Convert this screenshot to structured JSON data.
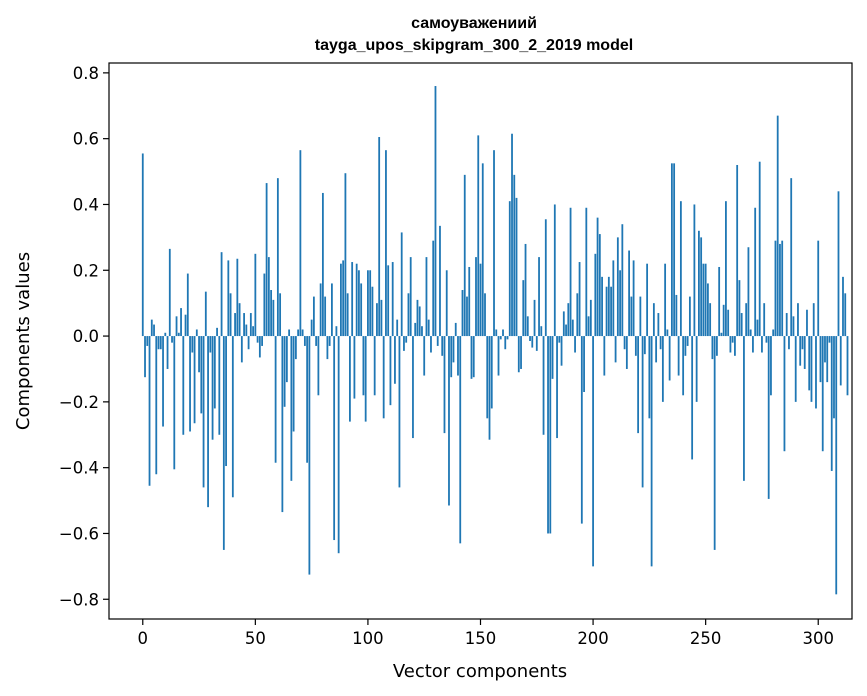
{
  "chart_data": {
    "type": "bar",
    "title_line1": "самоуважениий",
    "title_line2": "tayga_upos_skipgram_300_2_2019 model",
    "xlabel": "Vector components",
    "ylabel": "Components values",
    "xlim": [
      -15,
      315
    ],
    "ylim": [
      -0.86,
      0.83
    ],
    "xticks": [
      0,
      50,
      100,
      150,
      200,
      250,
      300
    ],
    "xtick_labels": [
      "0",
      "50",
      "100",
      "150",
      "200",
      "250",
      "300"
    ],
    "yticks": [
      0.8,
      0.6,
      0.4,
      0.2,
      0.0,
      -0.2,
      -0.4,
      -0.6,
      -0.8
    ],
    "ytick_labels": [
      "0.8",
      "0.6",
      "0.4",
      "0.2",
      "0.0",
      "−0.2",
      "−0.4",
      "−0.6",
      "−0.8"
    ],
    "bar_color": "#1f77b4",
    "grid": false,
    "values": [
      0.555,
      -0.125,
      -0.03,
      -0.455,
      0.05,
      0.035,
      -0.42,
      -0.04,
      -0.04,
      -0.275,
      0.01,
      -0.1,
      0.265,
      -0.02,
      -0.405,
      0.06,
      0.01,
      0.085,
      -0.3,
      0.065,
      0.19,
      -0.29,
      -0.05,
      -0.265,
      0.02,
      -0.11,
      -0.235,
      -0.46,
      0.135,
      -0.52,
      -0.05,
      -0.315,
      -0.22,
      0.025,
      -0.3,
      0.255,
      -0.65,
      -0.395,
      0.23,
      0.13,
      -0.49,
      0.07,
      0.235,
      0.1,
      -0.08,
      0.07,
      0.035,
      -0.04,
      0.07,
      0.03,
      0.25,
      -0.02,
      -0.065,
      -0.03,
      0.19,
      0.465,
      0.24,
      0.14,
      0.11,
      -0.385,
      0.48,
      0.13,
      -0.535,
      -0.215,
      -0.14,
      0.02,
      -0.44,
      -0.29,
      -0.07,
      0.02,
      0.565,
      0.02,
      -0.03,
      -0.385,
      -0.725,
      0.05,
      0.12,
      -0.03,
      -0.18,
      0.16,
      0.435,
      0.12,
      -0.07,
      -0.03,
      0.16,
      -0.62,
      0.03,
      -0.66,
      0.22,
      0.23,
      0.495,
      0.13,
      -0.26,
      0.225,
      -0.19,
      0.22,
      0.2,
      0.16,
      -0.18,
      -0.26,
      0.2,
      0.2,
      0.15,
      -0.18,
      0.1,
      0.605,
      0.11,
      -0.25,
      0.565,
      0.215,
      -0.21,
      0.225,
      -0.145,
      0.05,
      -0.46,
      0.315,
      -0.045,
      -0.02,
      0.13,
      0.24,
      -0.31,
      0.04,
      0.11,
      0.09,
      0.03,
      -0.12,
      0.24,
      0.05,
      -0.05,
      0.29,
      0.76,
      -0.03,
      0.335,
      -0.06,
      -0.295,
      0.2,
      -0.515,
      -0.125,
      -0.08,
      0.04,
      -0.12,
      -0.63,
      0.14,
      0.49,
      0.12,
      0.21,
      -0.13,
      -0.125,
      0.24,
      0.61,
      0.22,
      0.525,
      0.13,
      -0.25,
      -0.315,
      -0.22,
      0.565,
      0.02,
      -0.12,
      -0.01,
      0.02,
      -0.04,
      -0.01,
      0.41,
      0.615,
      0.49,
      0.42,
      -0.11,
      -0.1,
      0.17,
      0.28,
      0.06,
      -0.015,
      -0.035,
      0.11,
      -0.045,
      0.24,
      0.03,
      -0.3,
      0.355,
      -0.6,
      -0.6,
      -0.13,
      0.4,
      -0.31,
      -0.02,
      -0.09,
      0.075,
      0.035,
      0.1,
      0.39,
      0.05,
      -0.05,
      0.13,
      0.225,
      -0.57,
      -0.17,
      0.39,
      0.06,
      0.11,
      -0.7,
      0.25,
      0.36,
      0.31,
      0.18,
      -0.12,
      0.15,
      0.18,
      0.15,
      0.23,
      -0.08,
      0.3,
      0.2,
      0.34,
      -0.04,
      -0.1,
      0.26,
      0.12,
      0.23,
      -0.06,
      -0.295,
      0.12,
      -0.46,
      -0.055,
      0.22,
      -0.25,
      -0.7,
      0.1,
      -0.08,
      0.07,
      -0.04,
      -0.2,
      0.22,
      0.02,
      -0.135,
      0.525,
      0.525,
      0.125,
      -0.12,
      0.41,
      -0.18,
      -0.06,
      -0.03,
      0.12,
      -0.375,
      0.4,
      -0.2,
      0.32,
      0.3,
      0.22,
      0.22,
      0.16,
      0.1,
      -0.07,
      -0.65,
      -0.06,
      0.21,
      0.01,
      0.095,
      0.41,
      0.08,
      -0.05,
      -0.02,
      -0.06,
      0.52,
      0.17,
      0.07,
      -0.44,
      0.1,
      0.27,
      0.02,
      -0.05,
      0.39,
      0.05,
      0.53,
      -0.05,
      0.1,
      -0.02,
      -0.495,
      -0.18,
      0.02,
      0.29,
      0.67,
      0.28,
      0.29,
      -0.35,
      0.07,
      -0.04,
      0.48,
      0.06,
      -0.2,
      0.1,
      -0.09,
      -0.04,
      -0.1,
      0.08,
      -0.165,
      -0.2,
      0.1,
      -0.22,
      0.29,
      -0.14,
      -0.35,
      -0.08,
      -0.14,
      -0.02,
      -0.41,
      -0.25,
      -0.785,
      0.44,
      -0.15,
      0.18,
      0.13,
      -0.18
    ]
  }
}
